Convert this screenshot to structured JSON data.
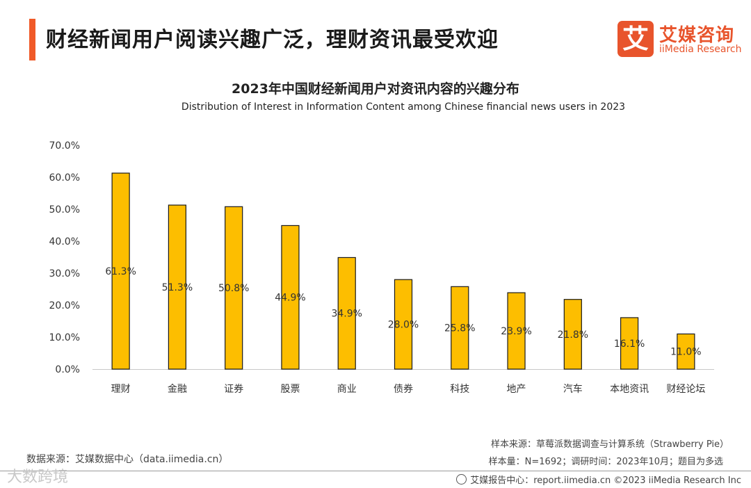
{
  "header": {
    "title": "财经新闻用户阅读兴趣广泛，理财资讯最受欢迎",
    "accent_color": "#f05a28"
  },
  "logo": {
    "mark": "艾",
    "name_cn": "艾媒咨询",
    "name_en": "iiMedia Research",
    "color": "#e8542c"
  },
  "chart_data": {
    "type": "bar",
    "title": "2023年中国财经新闻用户对资讯内容的兴趣分布",
    "subtitle": "Distribution of Interest in Information Content among Chinese financial news users in 2023",
    "categories": [
      "理财",
      "金融",
      "证券",
      "股票",
      "商业",
      "债券",
      "科技",
      "地产",
      "汽车",
      "本地资讯",
      "财经论坛"
    ],
    "values": [
      61.3,
      51.3,
      50.8,
      44.9,
      34.9,
      28.0,
      25.8,
      23.9,
      21.8,
      16.1,
      11.0
    ],
    "data_labels": [
      "61.3%",
      "51.3%",
      "50.8%",
      "44.9%",
      "34.9%",
      "28.0%",
      "25.8%",
      "23.9%",
      "21.8%",
      "16.1%",
      "11.0%"
    ],
    "ylim": [
      0,
      70
    ],
    "yticks": [
      0,
      10,
      20,
      30,
      40,
      50,
      60,
      70
    ],
    "ytick_labels": [
      "0.0%",
      "10.0%",
      "20.0%",
      "30.0%",
      "40.0%",
      "50.0%",
      "60.0%",
      "70.0%"
    ],
    "xlabel": "",
    "ylabel": "",
    "bar_color": "#fdbe00",
    "bar_edge_color": "#1a1a1a",
    "grid": false
  },
  "footer": {
    "data_source": "数据来源：艾媒数据中心（data.iimedia.cn）",
    "sample_source": "样本来源：草莓派数据调查与计算系统（Strawberry Pie）",
    "sample_info": "样本量：N=1692；调研时间：2023年10月；题目为多选",
    "report_center": "艾媒报告中心：report.iimedia.cn  ©2023  iiMedia Research  Inc",
    "watermark": "大数跨境"
  }
}
